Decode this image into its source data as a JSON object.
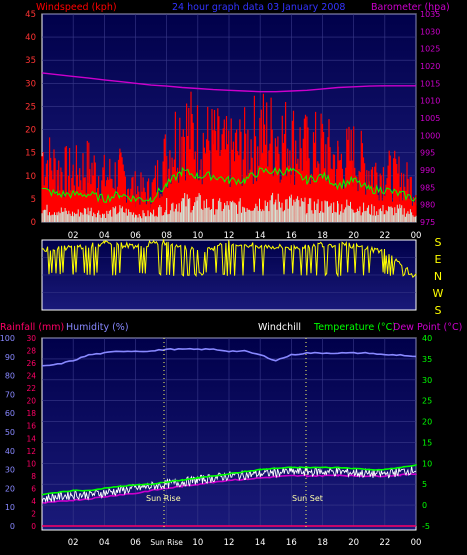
{
  "header": {
    "windspeed_label": "Windspeed (kph)",
    "title": "24 hour graph data  03 January 2008",
    "barometer_label": "Barometer (hpa)"
  },
  "x_ticks": [
    "02",
    "04",
    "06",
    "08",
    "10",
    "12",
    "14",
    "16",
    "18",
    "20",
    "22",
    "00"
  ],
  "bottom_x_ticks": [
    "02",
    "04",
    "06",
    "Sun Rise",
    "10",
    "12",
    "14",
    "16",
    "18",
    "20",
    "22",
    "00"
  ],
  "colors": {
    "wind_gust": "#ff0000",
    "wind_avg": "#00ff00",
    "wind_low": "#ffffff",
    "barometer": "#cc00cc",
    "direction": "#ffff00",
    "humidity": "#8888ff",
    "temperature": "#00ff00",
    "dewpoint": "#cc00cc",
    "windchill": "#ffffff",
    "rainfall": "#ff0066",
    "plot_bg_top": "#00004a",
    "plot_bg_bottom": "#1a1a7a"
  },
  "direction_labels": [
    "S",
    "E",
    "N",
    "W",
    "S"
  ],
  "bottom_header": {
    "rainfall_label": "Rainfall (mm)",
    "humidity_label": "Humidity (%)",
    "windchill_label": "Windchill",
    "temperature_label": "Temperature (°C)",
    "dewpoint_label": "Dew Point (°C)"
  },
  "annotations": {
    "sun_rise": "Sun Rise",
    "sun_set": "Sun Set"
  },
  "chart_data": [
    {
      "type": "line",
      "title": "24 hour graph data  03 January 2008",
      "x": [
        0,
        1,
        2,
        3,
        4,
        5,
        6,
        7,
        8,
        9,
        10,
        11,
        12,
        13,
        14,
        15,
        16,
        17,
        18,
        19,
        20,
        21,
        22,
        23,
        24
      ],
      "y_left_label": "Windspeed (kph)",
      "y_left_ticks": [
        0,
        5,
        10,
        15,
        20,
        25,
        30,
        35,
        40,
        45
      ],
      "y_left_lim": [
        0,
        45
      ],
      "y_right_label": "Barometer (hpa)",
      "y_right_ticks": [
        975,
        980,
        985,
        990,
        995,
        1000,
        1005,
        1010,
        1015,
        1020,
        1025,
        1030,
        1035
      ],
      "y_right_lim": [
        975,
        1035
      ],
      "series": [
        {
          "name": "Windspeed (kph)",
          "axis": "left",
          "values": [
            18,
            14,
            13,
            15,
            12,
            13,
            9,
            8,
            18,
            26,
            22,
            21,
            18,
            20,
            24,
            23,
            22,
            19,
            20,
            16,
            18,
            14,
            13,
            12,
            9
          ]
        },
        {
          "name": "",
          "axis": "left",
          "values": [
            7,
            6,
            6,
            6,
            5,
            6,
            5,
            5,
            8,
            11,
            10,
            10,
            9,
            9,
            11,
            11,
            11,
            9,
            10,
            8,
            9,
            7,
            7,
            6,
            5
          ]
        },
        {
          "name": "",
          "axis": "left",
          "values": [
            3,
            3,
            2,
            3,
            2,
            3,
            2,
            2,
            4,
            5,
            5,
            4,
            4,
            4,
            5,
            5,
            5,
            4,
            4,
            4,
            4,
            3,
            3,
            3,
            2
          ]
        },
        {
          "name": "Barometer (hpa)",
          "axis": "right",
          "values": [
            1018,
            1017.5,
            1017,
            1016.5,
            1016,
            1015.5,
            1015,
            1014.5,
            1014.2,
            1013.8,
            1013.5,
            1013.2,
            1013,
            1012.8,
            1012.6,
            1012.6,
            1012.8,
            1013,
            1013.4,
            1013.8,
            1014,
            1014.2,
            1014.3,
            1014.3,
            1014.3
          ]
        }
      ]
    },
    {
      "type": "line",
      "title": "",
      "x": [
        0,
        2,
        4,
        6,
        8,
        10,
        12,
        14,
        16,
        18,
        20,
        22,
        24
      ],
      "y_labels": [
        "S",
        "E",
        "N",
        "W",
        "S"
      ],
      "series": [
        {
          "name": "",
          "values": [
            315,
            320,
            340,
            330,
            350,
            300,
            340,
            330,
            320,
            340,
            330,
            300,
            170
          ]
        }
      ]
    },
    {
      "type": "line",
      "title": "",
      "x": [
        0,
        1,
        2,
        3,
        4,
        5,
        6,
        7,
        8,
        9,
        10,
        11,
        12,
        13,
        14,
        15,
        16,
        17,
        18,
        19,
        20,
        21,
        22,
        23,
        24
      ],
      "y_humidity_ticks": [
        0,
        10,
        20,
        30,
        40,
        50,
        60,
        70,
        80,
        90,
        100
      ],
      "y_humidity_lim": [
        0,
        100
      ],
      "y_rain_ticks": [
        0,
        2,
        4,
        6,
        8,
        10,
        12,
        14,
        16,
        18,
        20,
        22,
        24,
        26,
        28,
        30
      ],
      "y_rain_lim": [
        0,
        30
      ],
      "y_temp_ticks": [
        -5,
        0,
        5,
        10,
        15,
        20,
        25,
        30,
        35,
        40
      ],
      "y_temp_lim": [
        -5,
        40
      ],
      "series": [
        {
          "name": "Humidity (%)",
          "axis": "humidity",
          "values": [
            85,
            86,
            88,
            91,
            92,
            93,
            93,
            93,
            94,
            94,
            94,
            94,
            93,
            93,
            91,
            88,
            91,
            92,
            92,
            92,
            92,
            92,
            91,
            91,
            90
          ]
        },
        {
          "name": "Temperature (°C)",
          "axis": "temp",
          "values": [
            2.5,
            3,
            3.5,
            3.5,
            4,
            4.5,
            4.8,
            5,
            5.5,
            6,
            6.5,
            7,
            7.5,
            8,
            8.5,
            8.8,
            9,
            9,
            9,
            9,
            8.8,
            8.5,
            8.5,
            9,
            9.5
          ]
        },
        {
          "name": "Dew Point (°C)",
          "axis": "temp",
          "values": [
            0.5,
            0.8,
            1.2,
            1.5,
            2,
            2.5,
            2.8,
            3.5,
            4,
            4.5,
            5,
            5.5,
            6,
            6.2,
            6.5,
            6.8,
            7,
            7,
            7,
            7.2,
            7,
            7,
            7,
            7.2,
            7.5
          ]
        },
        {
          "name": "Windchill",
          "axis": "temp",
          "values": [
            1.5,
            2,
            2.5,
            2.5,
            3,
            3.5,
            4,
            4.5,
            5,
            5.5,
            6,
            6.5,
            7,
            7.2,
            7.5,
            7.8,
            8,
            8,
            8,
            8,
            7.8,
            7.5,
            7.5,
            8,
            8.5
          ]
        },
        {
          "name": "Rainfall (mm)",
          "axis": "rain",
          "values": [
            0,
            0,
            0,
            0,
            0,
            0,
            0,
            0,
            0,
            0,
            0,
            0,
            0,
            0,
            0,
            0,
            0,
            0,
            0,
            0,
            0,
            0,
            0,
            0,
            0
          ]
        }
      ]
    }
  ]
}
